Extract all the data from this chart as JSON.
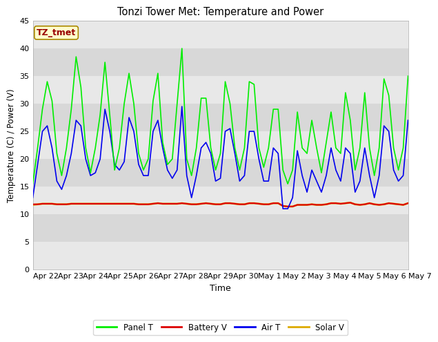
{
  "title": "Tonzi Tower Met: Temperature and Power",
  "xlabel": "Time",
  "ylabel": "Temperature (C) / Power (V)",
  "ylim": [
    0,
    45
  ],
  "yticks": [
    0,
    5,
    10,
    15,
    20,
    25,
    30,
    35,
    40,
    45
  ],
  "annotation_text": "TZ_tmet",
  "annotation_box_color": "#ffffcc",
  "annotation_text_color": "#990000",
  "x_tick_labels": [
    "Apr 22",
    "Apr 23",
    "Apr 24",
    "Apr 25",
    "Apr 26",
    "Apr 27",
    "Apr 28",
    "Apr 29",
    "Apr 30",
    "May 1",
    "May 2",
    "May 3",
    "May 4",
    "May 5",
    "May 6",
    "May 7"
  ],
  "band_colors": [
    "#e8e8e8",
    "#d8d8d8"
  ],
  "series_order": [
    "solar_v",
    "battery_v",
    "air_t",
    "panel_t"
  ],
  "series": {
    "panel_t": {
      "label": "Panel T",
      "color": "#00ee00",
      "linewidth": 1.2,
      "values": [
        15.5,
        22,
        29,
        34,
        30.5,
        21,
        17,
        22,
        29,
        38.5,
        33,
        22,
        17.5,
        22,
        28,
        37.5,
        28,
        18,
        22,
        30,
        35.5,
        30,
        21,
        18,
        20,
        30.5,
        35.5,
        23,
        19,
        20,
        30,
        40,
        20,
        17,
        22,
        31,
        31,
        22,
        18,
        21,
        34,
        30,
        22,
        18,
        22,
        34,
        33.5,
        22,
        18.5,
        22,
        29,
        29,
        18,
        15.5,
        18,
        28.5,
        22,
        21,
        27,
        22,
        17.5,
        23,
        28.5,
        22,
        21,
        32,
        27,
        18,
        22,
        32,
        22,
        17,
        22,
        34.5,
        31.5,
        22,
        18,
        22,
        35
      ]
    },
    "battery_v": {
      "label": "Battery V",
      "color": "#dd0000",
      "linewidth": 1.5,
      "values": [
        11.8,
        11.8,
        11.9,
        11.9,
        11.9,
        11.8,
        11.8,
        11.8,
        11.9,
        11.9,
        11.9,
        11.9,
        11.9,
        11.9,
        11.9,
        11.9,
        11.9,
        11.9,
        11.9,
        11.9,
        11.9,
        11.9,
        11.8,
        11.8,
        11.8,
        11.9,
        12.0,
        11.9,
        11.9,
        11.9,
        11.9,
        12.0,
        11.9,
        11.8,
        11.8,
        11.9,
        12.0,
        11.9,
        11.8,
        11.8,
        12.0,
        12.0,
        11.9,
        11.8,
        11.8,
        12.0,
        12.0,
        11.9,
        11.8,
        11.8,
        12.0,
        12.0,
        11.5,
        11.4,
        11.4,
        11.7,
        11.7,
        11.7,
        11.8,
        11.7,
        11.7,
        11.8,
        12.0,
        12.0,
        11.9,
        12.0,
        12.1,
        11.8,
        11.7,
        11.8,
        12.0,
        11.8,
        11.7,
        11.8,
        12.0,
        11.9,
        11.8,
        11.7,
        12.0
      ]
    },
    "air_t": {
      "label": "Air T",
      "color": "#0000ee",
      "linewidth": 1.2,
      "values": [
        13,
        19,
        25,
        26,
        22,
        16,
        14.5,
        17,
        21,
        27,
        26,
        20,
        17,
        17.5,
        20,
        29,
        25,
        19,
        18,
        19.5,
        27.5,
        25,
        19,
        17,
        17,
        25,
        27,
        22,
        18,
        16.5,
        18,
        29.5,
        17,
        13,
        17,
        22,
        23,
        21,
        16,
        16.5,
        25,
        25.5,
        21,
        16,
        17,
        25,
        25,
        20,
        16,
        16,
        22,
        21,
        11,
        11,
        13,
        21.5,
        17,
        14,
        18,
        16,
        14,
        17,
        22,
        18,
        16,
        22,
        21,
        14,
        16,
        22,
        17,
        13,
        17,
        26,
        25,
        18,
        16,
        17,
        27
      ]
    },
    "solar_v": {
      "label": "Solar V",
      "color": "#ddaa00",
      "linewidth": 2.0,
      "values": [
        11.7,
        11.8,
        11.9,
        11.9,
        11.9,
        11.8,
        11.8,
        11.8,
        11.9,
        11.9,
        11.9,
        11.9,
        11.9,
        11.9,
        11.9,
        11.9,
        11.9,
        11.9,
        11.9,
        11.9,
        11.9,
        11.9,
        11.8,
        11.8,
        11.8,
        11.9,
        12.0,
        11.9,
        11.9,
        11.9,
        11.9,
        12.0,
        11.9,
        11.8,
        11.8,
        11.9,
        12.0,
        11.9,
        11.8,
        11.8,
        12.0,
        12.0,
        11.9,
        11.8,
        11.8,
        12.0,
        12.0,
        11.9,
        11.8,
        11.8,
        12.0,
        12.0,
        11.5,
        11.4,
        11.4,
        11.7,
        11.7,
        11.7,
        11.8,
        11.7,
        11.7,
        11.8,
        12.0,
        12.0,
        11.9,
        12.0,
        12.1,
        11.8,
        11.7,
        11.8,
        12.0,
        11.8,
        11.7,
        11.8,
        12.0,
        11.9,
        11.8,
        11.7,
        12.0
      ]
    }
  }
}
